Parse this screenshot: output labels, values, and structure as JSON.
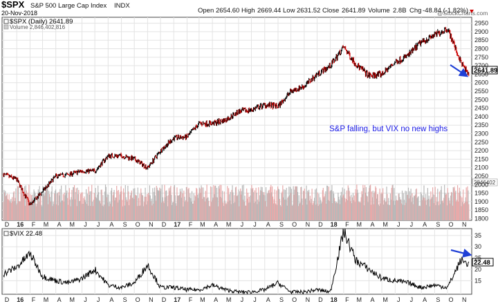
{
  "header": {
    "symbol": "$SPX",
    "name": "S&P 500 Large Cap Index",
    "exchange": "INDX",
    "date": "20-Nov-2018",
    "open_label": "Open",
    "open": "2654.60",
    "high_label": "High",
    "high": "2669.44",
    "low_label": "Low",
    "low": "2631.52",
    "close_label": "Close",
    "close": "2641.89",
    "volume_label": "Volume",
    "volume": "2.8B",
    "chg_label": "Chg",
    "chg": "-48.84 (-1.82%)",
    "watermark": "@StockCharts.com"
  },
  "colors": {
    "up": "#000000",
    "down": "#cc0000",
    "volume_up": "#b8b8b8",
    "volume_down": "#e8a9a9",
    "annotation": "#1a1ae6",
    "arrow": "#1f3fd6",
    "grid": "#e3e3e3"
  },
  "chart_data": [
    {
      "type": "line",
      "title": "S&P 500 Large Cap Index",
      "legend": "$SPX (Daily) 2641.89",
      "volume_legend": "Volume 2,846,402,816",
      "volume_tag": "2846402",
      "last_value": "2641.89",
      "annotation": "S&P falling, but VIX no new highs",
      "y_ticks": [
        1800,
        1850,
        1900,
        1950,
        2000,
        2050,
        2100,
        2150,
        2200,
        2250,
        2300,
        2350,
        2400,
        2450,
        2500,
        2550,
        2600,
        2650,
        2700,
        2750,
        2800,
        2850,
        2900,
        2950
      ],
      "ylim": [
        1790,
        2985
      ],
      "x_ticks": [
        "D",
        "16",
        "F",
        "M",
        "A",
        "M",
        "J",
        "J",
        "A",
        "S",
        "O",
        "N",
        "D",
        "17",
        "F",
        "M",
        "A",
        "M",
        "J",
        "J",
        "A",
        "S",
        "O",
        "N",
        "D",
        "18",
        "F",
        "M",
        "A",
        "M",
        "J",
        "J",
        "A",
        "S",
        "O",
        "N"
      ],
      "x": [
        "2015-12",
        "2016-01",
        "2016-02",
        "2016-03",
        "2016-04",
        "2016-05",
        "2016-06",
        "2016-07",
        "2016-08",
        "2016-09",
        "2016-10",
        "2016-11",
        "2016-12",
        "2017-01",
        "2017-02",
        "2017-03",
        "2017-04",
        "2017-05",
        "2017-06",
        "2017-07",
        "2017-08",
        "2017-09",
        "2017-10",
        "2017-11",
        "2017-12",
        "2018-01",
        "2018-02",
        "2018-03",
        "2018-04",
        "2018-05",
        "2018-06",
        "2018-07",
        "2018-08",
        "2018-09",
        "2018-10",
        "2018-11",
        "2018-11-20"
      ],
      "series": [
        {
          "name": "$SPX",
          "values": [
            2060,
            2030,
            1880,
            1960,
            2050,
            2060,
            2080,
            2080,
            2170,
            2170,
            2150,
            2100,
            2200,
            2275,
            2280,
            2360,
            2360,
            2380,
            2430,
            2440,
            2470,
            2460,
            2550,
            2580,
            2650,
            2700,
            2810,
            2710,
            2640,
            2650,
            2720,
            2760,
            2840,
            2880,
            2920,
            2720,
            2641.89
          ]
        }
      ]
    },
    {
      "type": "line",
      "legend": "$VIX 22.48",
      "last_value": "22.48",
      "y_ticks": [
        15,
        20,
        25,
        30,
        35
      ],
      "ylim": [
        9,
        38
      ],
      "x_ticks": [
        "D",
        "16",
        "F",
        "M",
        "A",
        "M",
        "J",
        "J",
        "A",
        "S",
        "O",
        "N",
        "D",
        "17",
        "F",
        "M",
        "A",
        "M",
        "J",
        "J",
        "A",
        "S",
        "O",
        "N",
        "D",
        "18",
        "F",
        "M",
        "A",
        "M",
        "J",
        "J",
        "A",
        "S",
        "O",
        "N"
      ],
      "x": [
        "2015-12",
        "2016-01",
        "2016-02",
        "2016-03",
        "2016-04",
        "2016-05",
        "2016-06",
        "2016-07",
        "2016-08",
        "2016-09",
        "2016-10",
        "2016-11",
        "2016-12",
        "2017-01",
        "2017-02",
        "2017-03",
        "2017-04",
        "2017-05",
        "2017-06",
        "2017-07",
        "2017-08",
        "2017-09",
        "2017-10",
        "2017-11",
        "2017-12",
        "2018-01",
        "2018-02",
        "2018-03",
        "2018-04",
        "2018-05",
        "2018-06",
        "2018-07",
        "2018-08",
        "2018-09",
        "2018-10",
        "2018-11",
        "2018-11-20"
      ],
      "series": [
        {
          "name": "$VIX",
          "values": [
            18,
            21,
            27,
            17,
            15,
            14,
            16,
            20,
            13,
            12,
            14,
            22,
            12,
            12,
            11,
            11,
            13,
            11,
            10,
            10,
            11,
            14,
            10,
            10,
            11,
            10,
            37,
            24,
            20,
            16,
            15,
            14,
            12,
            13,
            12,
            24,
            22.48
          ]
        }
      ]
    }
  ]
}
